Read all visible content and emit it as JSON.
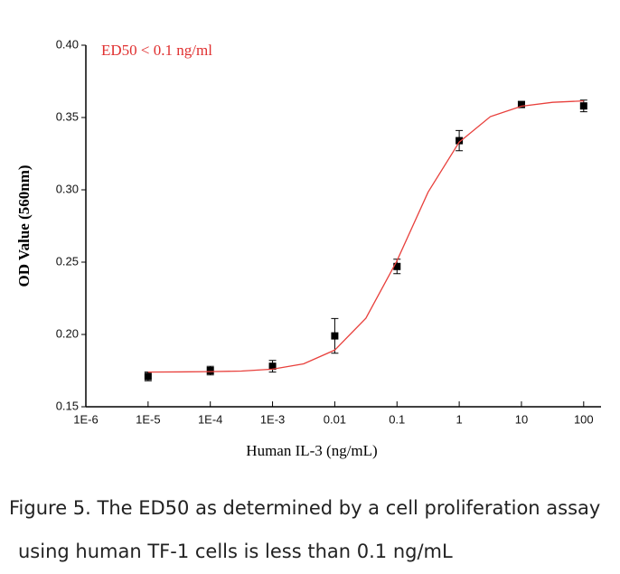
{
  "chart_data": {
    "type": "scatter",
    "log_x": true,
    "xlabel": "Human IL-3 (ng/mL)",
    "ylabel": "OD Value (560nm)",
    "annotation": "ED50 < 0.1 ng/ml",
    "annotation_color": "#e03030",
    "xlim": [
      1e-06,
      190
    ],
    "ylim": [
      0.15,
      0.4
    ],
    "xticks": [
      {
        "value": 1e-06,
        "label": "1E-6"
      },
      {
        "value": 1e-05,
        "label": "1E-5"
      },
      {
        "value": 0.0001,
        "label": "1E-4"
      },
      {
        "value": 0.001,
        "label": "1E-3"
      },
      0.01,
      0.1,
      1,
      10,
      100
    ],
    "yticks": [
      {
        "value": 0.15,
        "label": "0.15"
      },
      {
        "value": 0.2,
        "label": "0.20"
      },
      0.25,
      {
        "value": 0.3,
        "label": "0.30"
      },
      0.35,
      {
        "value": 0.4,
        "label": "0.40"
      }
    ],
    "series": [
      {
        "type": "scatter",
        "color": "#000000",
        "x": [
          1e-05,
          0.0001,
          0.001,
          0.01,
          0.1,
          1,
          10,
          100
        ],
        "values": [
          0.171,
          0.175,
          0.178,
          0.199,
          0.247,
          0.334,
          0.359,
          0.358
        ],
        "errors": [
          0.003,
          0.003,
          0.004,
          0.012,
          0.005,
          0.007,
          0.002,
          0.004
        ]
      },
      {
        "type": "line",
        "color": "#e8403c",
        "x": [
          1e-05,
          3.16e-05,
          0.0001,
          0.000316,
          0.001,
          0.00316,
          0.01,
          0.0316,
          0.1,
          0.316,
          1,
          3.16,
          10,
          31.6,
          100
        ],
        "values": [
          0.174,
          0.1741,
          0.1743,
          0.1747,
          0.176,
          0.1797,
          0.1892,
          0.2112,
          0.251,
          0.2984,
          0.333,
          0.3506,
          0.3578,
          0.3605,
          0.3615
        ]
      }
    ]
  },
  "caption": [
    "Figure 5. The ED50 as determined by a cell proliferation assay",
    "using human TF-1 cells is less than 0.1 ng/mL"
  ]
}
